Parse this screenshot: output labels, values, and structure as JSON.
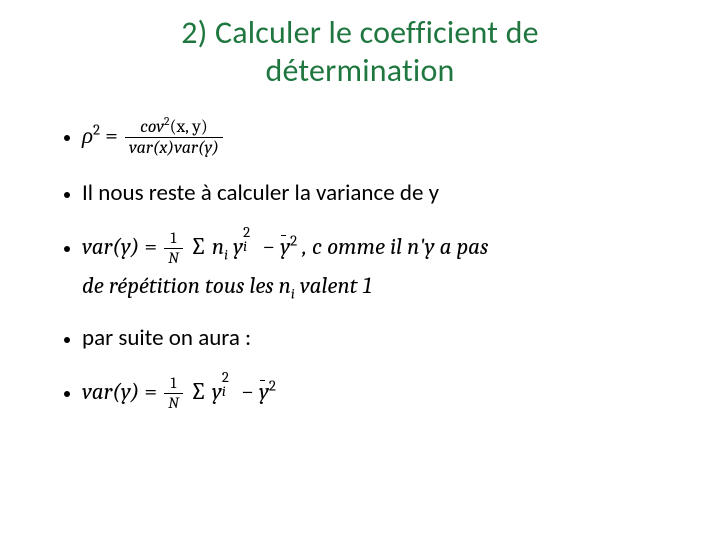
{
  "title_line1": "2) Calculer le coefficient de",
  "title_line2": "détermination",
  "bullets": {
    "formula_rho": {
      "lhs_var": "ρ",
      "lhs_exp": "2",
      "equals": "=",
      "num_a": "cov",
      "num_exp": "2",
      "num_b": "(x, y)",
      "den_a": "var(x)var(y)"
    },
    "line_variance_y": "Il nous reste à calculer la variance de y",
    "formula_var_full": {
      "lhs": "var(y)",
      "equals": "=",
      "frac_num": "1",
      "frac_den": "N",
      "sum": "∑",
      "n": "n",
      "n_sub": "i",
      "y": "y",
      "y_sub": "i",
      "y_sup": "2",
      "minus": "  −  ",
      "ybar": "y",
      "ybar_sup": "2",
      "tail1": " , c omme il n'y a  pas",
      "tail2_a": "de répétition  tous les ",
      "tail2_n": "n",
      "tail2_nsub": "i",
      "tail2_b": "  valent 1"
    },
    "line_par_suite": "par suite on aura :",
    "formula_var_simple": {
      "lhs": "var(y)",
      "equals": "=",
      "frac_num": "1",
      "frac_den": "N",
      "sum": "∑",
      "y": "y",
      "y_sub": "i",
      "y_sup": "2",
      "minus": "  −  ",
      "ybar": "y",
      "ybar_sup": "2"
    }
  },
  "colors": {
    "title": "#1f773f",
    "text": "#000000",
    "background": "#ffffff"
  }
}
